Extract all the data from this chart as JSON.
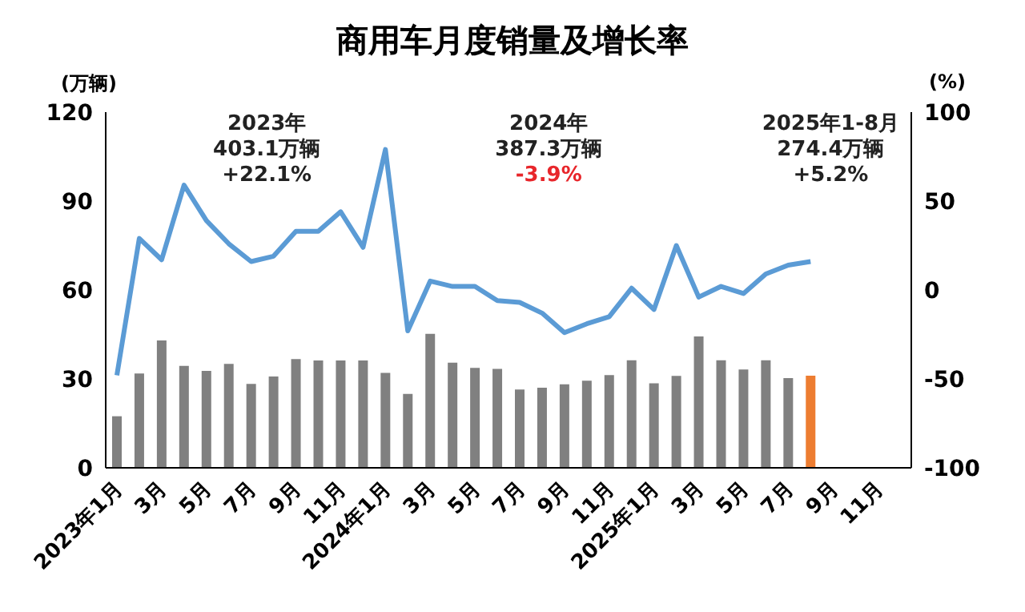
{
  "chart_data": {
    "type": "bar",
    "title": "商用车月度销量及增长率",
    "ylabel": "(万辆)",
    "y2label": "(%)",
    "categories": [
      "2023年1月",
      null,
      "3月",
      null,
      "5月",
      null,
      "7月",
      null,
      "9月",
      null,
      "11月",
      null,
      "2024年1月",
      null,
      "3月",
      null,
      "5月",
      null,
      "7月",
      null,
      "9月",
      null,
      "11月",
      null,
      "2025年1月",
      null,
      "3月",
      null,
      "5月",
      null,
      "7月",
      null,
      "9月",
      null,
      "11月",
      null
    ],
    "series": [
      {
        "color": "#808080",
        "colors": [
          "#808080",
          "#808080",
          "#808080",
          "#808080",
          "#808080",
          "#808080",
          "#808080",
          "#808080",
          "#808080",
          "#808080",
          "#808080",
          "#808080",
          "#808080",
          "#808080",
          "#808080",
          "#808080",
          "#808080",
          "#808080",
          "#808080",
          "#808080",
          "#808080",
          "#808080",
          "#808080",
          "#808080",
          "#808080",
          "#808080",
          "#808080",
          "#808080",
          "#808080",
          "#808080",
          "#808080",
          "#ed7d31",
          null,
          null,
          null,
          null
        ],
        "values": [
          17.4,
          31.8,
          43,
          34.4,
          32.7,
          35.1,
          28.3,
          30.8,
          36.7,
          36.2,
          36.2,
          36.2,
          32,
          24.9,
          45.2,
          35.5,
          33.7,
          33.4,
          26.4,
          27,
          28.2,
          29.4,
          31.3,
          36.3,
          28.5,
          31,
          44.3,
          36.3,
          33.2,
          36.3,
          30.3,
          31.1,
          null,
          null,
          null,
          null
        ]
      },
      {
        "type": "line",
        "axis": "y2",
        "color": "#5b9bd5",
        "values": [
          -48,
          29,
          17,
          59,
          39,
          26,
          16,
          19,
          33,
          33,
          44,
          24,
          79,
          -23,
          5,
          2,
          2,
          -6,
          -7,
          -13,
          -24,
          -19,
          -15,
          1,
          -11,
          25,
          -4,
          2,
          -2,
          9,
          14,
          16,
          null,
          null,
          null,
          null
        ]
      }
    ],
    "ylim": [
      0,
      120
    ],
    "yticks": [
      0,
      30,
      60,
      90,
      120
    ],
    "y2lim": [
      -100,
      100
    ],
    "y2ticks": [
      -100,
      -50,
      0,
      50,
      100
    ],
    "annotations": [
      "2023年",
      "403.1万辆",
      "+22.1%",
      "2024年",
      "387.3万辆",
      "-3.9%",
      "2025年1-8月",
      "274.4万辆",
      "+5.2%"
    ],
    "grid": false,
    "legend": false,
    "marker": "none",
    "line_style": "solid"
  }
}
